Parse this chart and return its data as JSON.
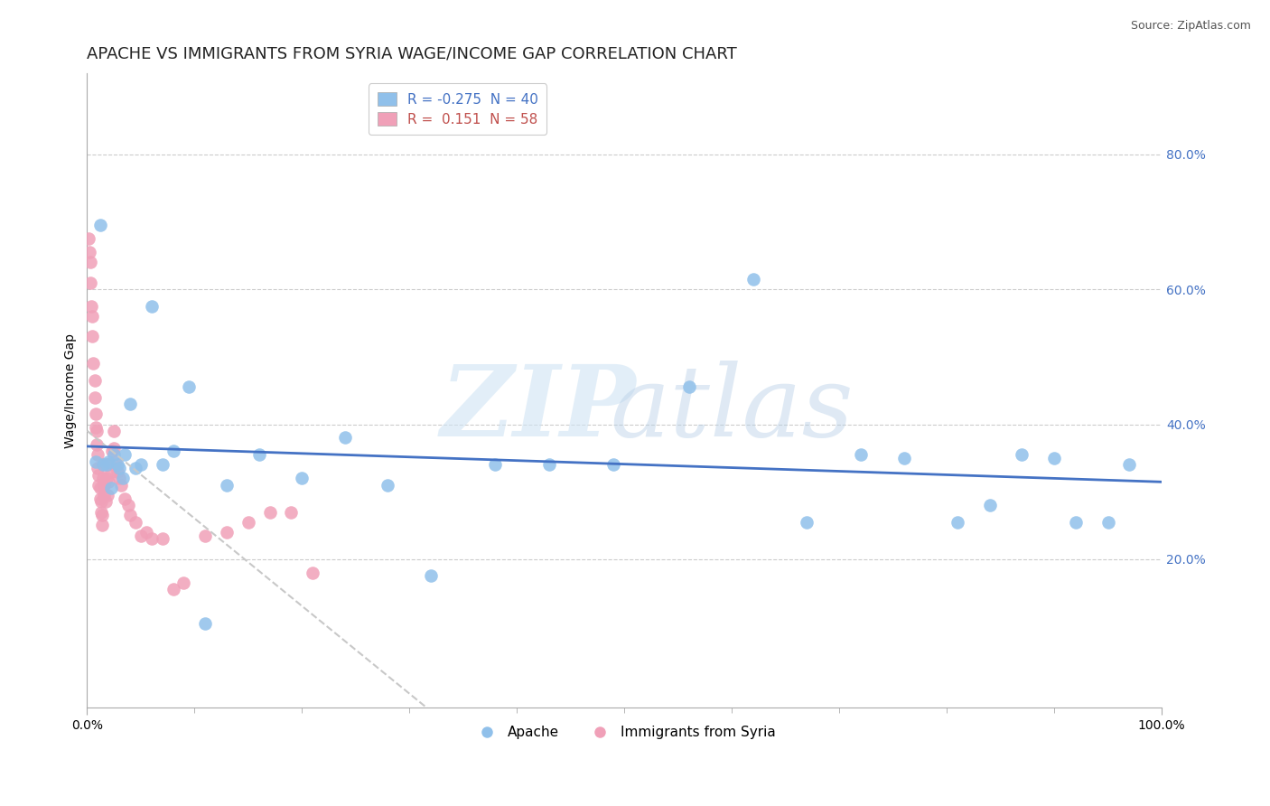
{
  "title": "APACHE VS IMMIGRANTS FROM SYRIA WAGE/INCOME GAP CORRELATION CHART",
  "source": "Source: ZipAtlas.com",
  "ylabel": "Wage/Income Gap",
  "xlim": [
    0,
    1.0
  ],
  "ylim": [
    -0.02,
    0.92
  ],
  "yticks": [
    0.2,
    0.4,
    0.6,
    0.8
  ],
  "ytick_labels": [
    "20.0%",
    "40.0%",
    "60.0%",
    "80.0%"
  ],
  "xtick_vals": [
    0.0,
    1.0
  ],
  "xtick_labels": [
    "0.0%",
    "100.0%"
  ],
  "legend_apache_R": "-0.275",
  "legend_apache_N": "40",
  "legend_syria_R": " 0.151",
  "legend_syria_N": "58",
  "apache_color": "#90C0EA",
  "syria_color": "#F0A0B8",
  "apache_line_color": "#4472C4",
  "syria_line_color": "#C8C8C8",
  "background_color": "#FFFFFF",
  "grid_color": "#CCCCCC",
  "title_fontsize": 13,
  "axis_label_fontsize": 10,
  "tick_fontsize": 10,
  "legend_fontsize": 11,
  "apache_points_x": [
    0.008,
    0.012,
    0.015,
    0.018,
    0.02,
    0.022,
    0.025,
    0.028,
    0.03,
    0.033,
    0.035,
    0.04,
    0.045,
    0.05,
    0.06,
    0.07,
    0.08,
    0.095,
    0.11,
    0.13,
    0.16,
    0.2,
    0.24,
    0.28,
    0.32,
    0.38,
    0.43,
    0.49,
    0.56,
    0.62,
    0.67,
    0.72,
    0.76,
    0.81,
    0.84,
    0.87,
    0.9,
    0.92,
    0.95,
    0.97
  ],
  "apache_points_y": [
    0.345,
    0.695,
    0.34,
    0.34,
    0.345,
    0.305,
    0.355,
    0.34,
    0.335,
    0.32,
    0.355,
    0.43,
    0.335,
    0.34,
    0.575,
    0.34,
    0.36,
    0.455,
    0.105,
    0.31,
    0.355,
    0.32,
    0.38,
    0.31,
    0.175,
    0.34,
    0.34,
    0.34,
    0.455,
    0.615,
    0.255,
    0.355,
    0.35,
    0.255,
    0.28,
    0.355,
    0.35,
    0.255,
    0.255,
    0.34
  ],
  "syria_points_x": [
    0.001,
    0.002,
    0.003,
    0.003,
    0.004,
    0.005,
    0.005,
    0.006,
    0.007,
    0.007,
    0.008,
    0.008,
    0.009,
    0.009,
    0.01,
    0.01,
    0.011,
    0.011,
    0.012,
    0.012,
    0.013,
    0.013,
    0.014,
    0.014,
    0.015,
    0.015,
    0.016,
    0.016,
    0.017,
    0.018,
    0.018,
    0.019,
    0.02,
    0.02,
    0.022,
    0.023,
    0.025,
    0.025,
    0.027,
    0.028,
    0.03,
    0.032,
    0.035,
    0.038,
    0.04,
    0.045,
    0.05,
    0.055,
    0.06,
    0.07,
    0.08,
    0.09,
    0.11,
    0.13,
    0.15,
    0.17,
    0.19,
    0.21
  ],
  "syria_points_y": [
    0.675,
    0.655,
    0.64,
    0.61,
    0.575,
    0.56,
    0.53,
    0.49,
    0.465,
    0.44,
    0.415,
    0.395,
    0.39,
    0.37,
    0.355,
    0.335,
    0.325,
    0.31,
    0.305,
    0.29,
    0.285,
    0.27,
    0.265,
    0.25,
    0.34,
    0.32,
    0.31,
    0.295,
    0.285,
    0.34,
    0.32,
    0.295,
    0.34,
    0.315,
    0.33,
    0.36,
    0.39,
    0.365,
    0.345,
    0.33,
    0.32,
    0.31,
    0.29,
    0.28,
    0.265,
    0.255,
    0.235,
    0.24,
    0.23,
    0.23,
    0.155,
    0.165,
    0.235,
    0.24,
    0.255,
    0.27,
    0.27,
    0.18
  ]
}
